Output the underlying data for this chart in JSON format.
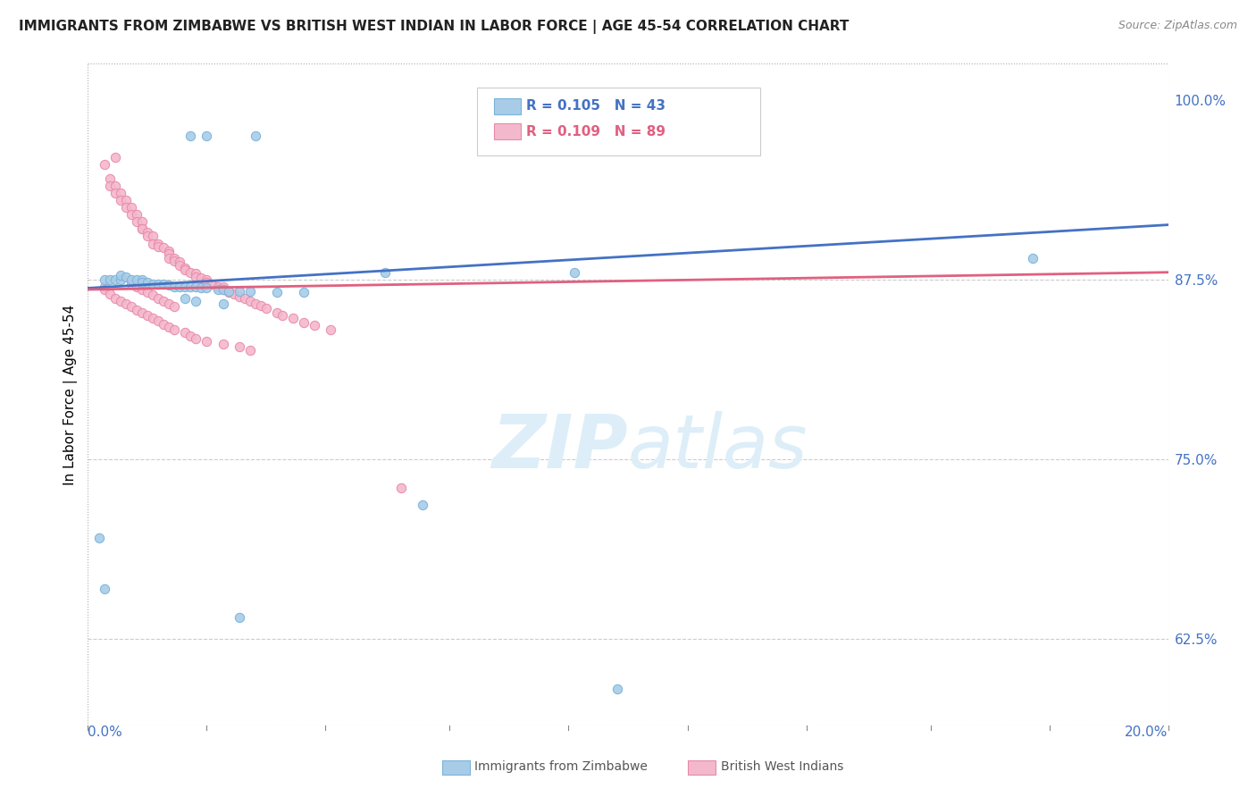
{
  "title": "IMMIGRANTS FROM ZIMBABWE VS BRITISH WEST INDIAN IN LABOR FORCE | AGE 45-54 CORRELATION CHART",
  "source": "Source: ZipAtlas.com",
  "ylabel": "In Labor Force | Age 45-54",
  "right_yticks": [
    0.625,
    0.75,
    0.875,
    1.0
  ],
  "right_yticklabels": [
    "62.5%",
    "75.0%",
    "87.5%",
    "100.0%"
  ],
  "legend_r1": "R = 0.105",
  "legend_n1": "N = 43",
  "legend_r2": "R = 0.109",
  "legend_n2": "N = 89",
  "legend_label1": "Immigrants from Zimbabwe",
  "legend_label2": "British West Indians",
  "color_blue": "#a8cce8",
  "color_blue_edge": "#7ab3d8",
  "color_pink": "#f4b8cc",
  "color_pink_edge": "#e88aaa",
  "color_blue_line": "#4472c4",
  "color_pink_line": "#e06080",
  "color_axis": "#4472c4",
  "watermark_color": "#ddeef8",
  "xmin": 0.0,
  "xmax": 0.2,
  "ymin": 0.565,
  "ymax": 1.025,
  "zimbabwe_x": [
    0.019,
    0.022,
    0.031,
    0.003,
    0.004,
    0.005,
    0.006,
    0.006,
    0.007,
    0.008,
    0.009,
    0.01,
    0.01,
    0.011,
    0.012,
    0.013,
    0.014,
    0.015,
    0.016,
    0.017,
    0.018,
    0.019,
    0.02,
    0.021,
    0.022,
    0.024,
    0.025,
    0.026,
    0.028,
    0.03,
    0.035,
    0.04,
    0.018,
    0.02,
    0.025,
    0.055,
    0.09,
    0.175,
    0.002,
    0.003,
    0.028,
    0.062,
    0.098
  ],
  "zimbabwe_y": [
    0.975,
    0.975,
    0.975,
    0.875,
    0.875,
    0.875,
    0.875,
    0.878,
    0.877,
    0.875,
    0.875,
    0.875,
    0.873,
    0.873,
    0.872,
    0.872,
    0.872,
    0.871,
    0.87,
    0.87,
    0.87,
    0.87,
    0.87,
    0.869,
    0.869,
    0.868,
    0.868,
    0.867,
    0.867,
    0.867,
    0.866,
    0.866,
    0.862,
    0.86,
    0.858,
    0.88,
    0.88,
    0.89,
    0.695,
    0.66,
    0.64,
    0.718,
    0.59
  ],
  "bwi_x": [
    0.003,
    0.004,
    0.004,
    0.005,
    0.005,
    0.005,
    0.006,
    0.006,
    0.007,
    0.007,
    0.008,
    0.008,
    0.009,
    0.009,
    0.01,
    0.01,
    0.01,
    0.011,
    0.011,
    0.012,
    0.012,
    0.013,
    0.013,
    0.014,
    0.015,
    0.015,
    0.015,
    0.016,
    0.016,
    0.017,
    0.017,
    0.018,
    0.018,
    0.019,
    0.02,
    0.02,
    0.021,
    0.022,
    0.022,
    0.023,
    0.024,
    0.025,
    0.025,
    0.026,
    0.027,
    0.028,
    0.029,
    0.03,
    0.031,
    0.032,
    0.033,
    0.035,
    0.036,
    0.038,
    0.04,
    0.042,
    0.045,
    0.008,
    0.009,
    0.01,
    0.011,
    0.012,
    0.013,
    0.014,
    0.015,
    0.016,
    0.003,
    0.003,
    0.004,
    0.005,
    0.006,
    0.007,
    0.008,
    0.009,
    0.01,
    0.011,
    0.012,
    0.013,
    0.014,
    0.015,
    0.016,
    0.018,
    0.019,
    0.02,
    0.022,
    0.025,
    0.028,
    0.03,
    0.058
  ],
  "bwi_y": [
    0.955,
    0.945,
    0.94,
    0.94,
    0.935,
    0.96,
    0.935,
    0.93,
    0.93,
    0.925,
    0.925,
    0.92,
    0.92,
    0.915,
    0.915,
    0.91,
    0.91,
    0.908,
    0.905,
    0.905,
    0.9,
    0.9,
    0.898,
    0.897,
    0.895,
    0.893,
    0.89,
    0.89,
    0.888,
    0.887,
    0.885,
    0.883,
    0.882,
    0.88,
    0.879,
    0.877,
    0.876,
    0.875,
    0.873,
    0.872,
    0.87,
    0.87,
    0.868,
    0.866,
    0.865,
    0.863,
    0.862,
    0.86,
    0.858,
    0.857,
    0.855,
    0.852,
    0.85,
    0.848,
    0.845,
    0.843,
    0.84,
    0.872,
    0.87,
    0.868,
    0.866,
    0.864,
    0.862,
    0.86,
    0.858,
    0.856,
    0.87,
    0.868,
    0.865,
    0.862,
    0.86,
    0.858,
    0.856,
    0.854,
    0.852,
    0.85,
    0.848,
    0.846,
    0.844,
    0.842,
    0.84,
    0.838,
    0.836,
    0.834,
    0.832,
    0.83,
    0.828,
    0.826,
    0.73
  ],
  "gridline_y": [
    0.875,
    0.75,
    0.625
  ],
  "xtick_positions": [
    0.0,
    0.022,
    0.044,
    0.067,
    0.089,
    0.111,
    0.133,
    0.156,
    0.178,
    0.2
  ]
}
